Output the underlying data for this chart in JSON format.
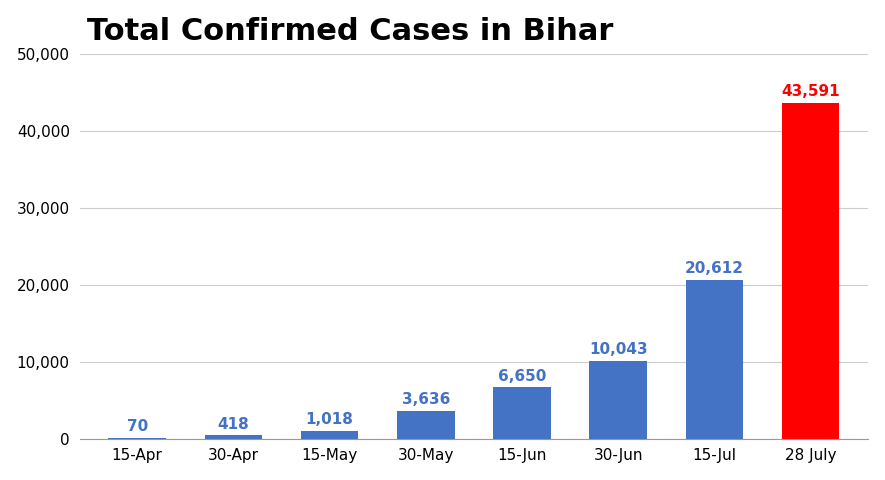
{
  "title": "Total Confirmed Cases in Bihar",
  "categories": [
    "15-Apr",
    "30-Apr",
    "15-May",
    "30-May",
    "15-Jun",
    "30-Jun",
    "15-Jul",
    "28 July"
  ],
  "values": [
    70,
    418,
    1018,
    3636,
    6650,
    10043,
    20612,
    43591
  ],
  "bar_colors": [
    "#4472C4",
    "#4472C4",
    "#4472C4",
    "#4472C4",
    "#4472C4",
    "#4472C4",
    "#4472C4",
    "#FF0000"
  ],
  "label_colors": [
    "#4472C4",
    "#4472C4",
    "#4472C4",
    "#4472C4",
    "#4472C4",
    "#4472C4",
    "#4472C4",
    "#FF0000"
  ],
  "ylim": [
    0,
    50000
  ],
  "yticks": [
    0,
    10000,
    20000,
    30000,
    40000,
    50000
  ],
  "ytick_labels": [
    "0",
    "10,000",
    "20,000",
    "30,000",
    "40,000",
    "50,000"
  ],
  "title_fontsize": 22,
  "title_fontweight": "bold",
  "label_fontsize": 11,
  "tick_fontsize": 11,
  "background_color": "#FFFFFF",
  "grid_color": "#CCCCCC"
}
